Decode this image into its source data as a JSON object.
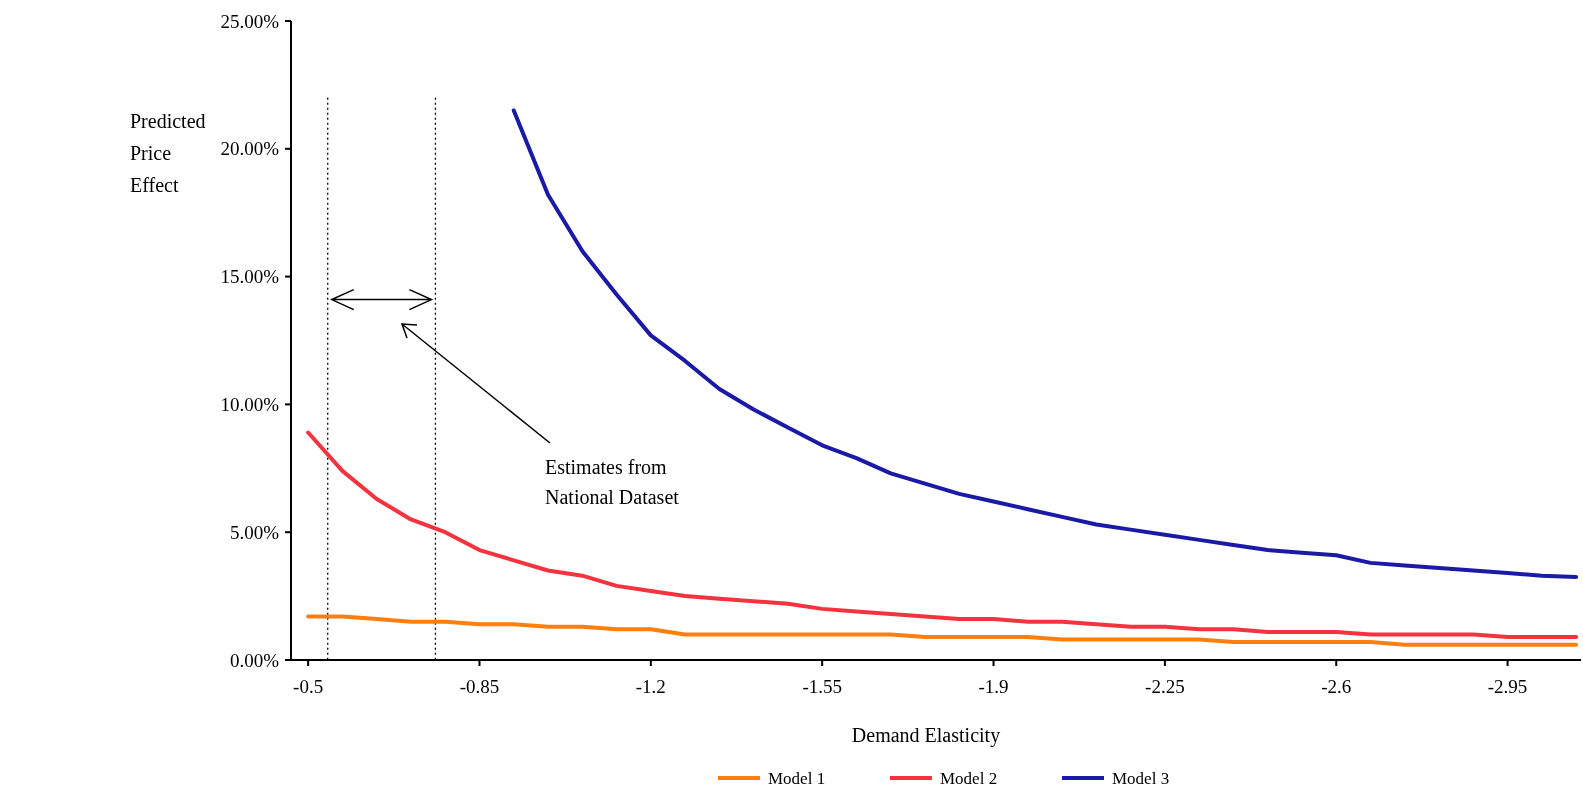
{
  "chart_data": {
    "type": "line",
    "xlabel": "Demand Elasticity",
    "ylabel": "Predicted Price Effect",
    "x": [
      -0.5,
      -0.57,
      -0.64,
      -0.71,
      -0.78,
      -0.85,
      -0.92,
      -0.99,
      -1.06,
      -1.13,
      -1.2,
      -1.27,
      -1.34,
      -1.41,
      -1.48,
      -1.55,
      -1.62,
      -1.69,
      -1.76,
      -1.83,
      -1.9,
      -1.97,
      -2.04,
      -2.11,
      -2.18,
      -2.25,
      -2.32,
      -2.39,
      -2.46,
      -2.53,
      -2.6,
      -2.67,
      -2.74,
      -2.81,
      -2.88,
      -2.95,
      -3.02,
      -3.09
    ],
    "series": [
      {
        "name": "Model 1",
        "color": "#ff7f0e",
        "values": [
          1.7,
          1.7,
          1.6,
          1.5,
          1.5,
          1.4,
          1.4,
          1.3,
          1.3,
          1.2,
          1.2,
          1.0,
          1.0,
          1.0,
          1.0,
          1.0,
          1.0,
          1.0,
          0.9,
          0.9,
          0.9,
          0.9,
          0.8,
          0.8,
          0.8,
          0.8,
          0.8,
          0.7,
          0.7,
          0.7,
          0.7,
          0.7,
          0.6,
          0.6,
          0.6,
          0.6,
          0.6,
          0.6
        ]
      },
      {
        "name": "Model 2",
        "color": "#f5333f",
        "values": [
          8.9,
          7.4,
          6.3,
          5.5,
          5.0,
          4.3,
          3.9,
          3.5,
          3.3,
          2.9,
          2.7,
          2.5,
          2.4,
          2.3,
          2.2,
          2.0,
          1.9,
          1.8,
          1.7,
          1.6,
          1.6,
          1.5,
          1.5,
          1.4,
          1.3,
          1.3,
          1.2,
          1.2,
          1.1,
          1.1,
          1.1,
          1.0,
          1.0,
          1.0,
          1.0,
          0.9,
          0.9,
          0.9
        ]
      },
      {
        "name": "Model 3",
        "color": "#1a1aa6",
        "values": [
          null,
          null,
          null,
          null,
          null,
          null,
          21.5,
          18.2,
          16.0,
          14.3,
          12.7,
          11.7,
          10.6,
          9.8,
          9.1,
          8.4,
          7.9,
          7.3,
          6.9,
          6.5,
          6.2,
          5.9,
          5.6,
          5.3,
          5.1,
          4.9,
          4.7,
          4.5,
          4.3,
          4.2,
          4.1,
          3.8,
          3.7,
          3.6,
          3.5,
          3.4,
          3.3,
          3.25
        ]
      }
    ],
    "xlim": [
      -0.465,
      -3.1
    ],
    "xticks": [
      -0.5,
      -0.85,
      -1.2,
      -1.55,
      -1.9,
      -2.25,
      -2.6,
      -2.95
    ],
    "ylim": [
      0,
      25
    ],
    "yticks": [
      {
        "value": 0,
        "label": "0.00%"
      },
      {
        "value": 5,
        "label": "5.00%"
      },
      {
        "value": 10,
        "label": "10.00%"
      },
      {
        "value": 15,
        "label": "15.00%"
      },
      {
        "value": 20,
        "label": "20.00%"
      },
      {
        "value": 25,
        "label": "25.00%"
      }
    ],
    "ref_lines": [
      {
        "axis": "x",
        "value": -0.54,
        "line_style": "dotted",
        "color": "#000000"
      },
      {
        "axis": "x",
        "value": -0.76,
        "line_style": "dotted",
        "color": "#000000"
      }
    ],
    "annotations": [
      "Estimates from National Dataset"
    ],
    "legend": "bottom",
    "grid": false,
    "marker": "none",
    "line_style": "solid"
  }
}
